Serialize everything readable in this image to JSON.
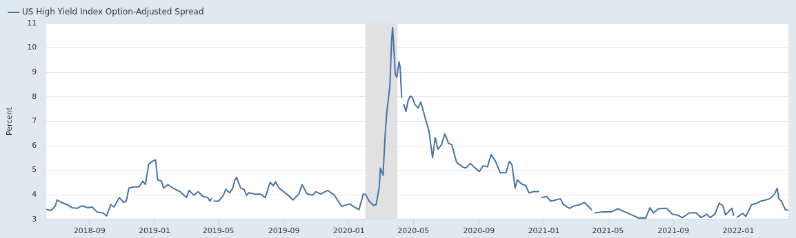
{
  "chart_data": {
    "type": "line",
    "ylabel": "Percent",
    "legend": "top left",
    "grid": "y",
    "marker": "none",
    "xlim": [
      "2018-06-12",
      "2022-04-05"
    ],
    "xticks": [
      "2018-09",
      "2019-01",
      "2019-05",
      "2019-09",
      "2020-01",
      "2020-05",
      "2020-09",
      "2021-01",
      "2021-05",
      "2021-09",
      "2022-01"
    ],
    "ylim": [
      3,
      11
    ],
    "yticks": [
      3,
      4,
      5,
      6,
      7,
      8,
      9,
      10,
      11
    ],
    "bands": [
      {
        "axis": "x",
        "from": "2020-02-01",
        "to": "2020-04-01",
        "color": "#e1e1e1"
      }
    ],
    "x": [
      "2018-06-12",
      "2018-06-21",
      "2018-06-29",
      "2018-07-02",
      "2018-07-10",
      "2018-07-21",
      "2018-07-30",
      "2018-08-09",
      "2018-08-18",
      "2018-08-29",
      "2018-09-06",
      "2018-09-15",
      "2018-09-26",
      "2018-10-03",
      "2018-10-11",
      "2018-10-17",
      "2018-10-27",
      "2018-11-04",
      "2018-11-09",
      "2018-11-14",
      "2018-11-23",
      "2018-12-03",
      "2018-12-10",
      "2018-12-15",
      "2018-12-21",
      "2018-12-27",
      "2019-01-03",
      "2019-01-07",
      "2019-01-14",
      "2019-01-18",
      "2019-01-26",
      "2019-02-05",
      "2019-02-18",
      "2019-03-02",
      "2019-03-07",
      "2019-03-16",
      "2019-03-24",
      "2019-04-02",
      "2019-04-11",
      "2019-04-15",
      "2019-04-18",
      "2019-04-20",
      "2019-04-23",
      "2019-05-01",
      "2019-05-09",
      "2019-05-15",
      "2019-05-22",
      "2019-05-28",
      "2019-06-01",
      "2019-06-04",
      "2019-06-12",
      "2019-06-18",
      "2019-06-23",
      "2019-06-27",
      "2019-07-08",
      "2019-07-19",
      "2019-07-28",
      "2019-08-06",
      "2019-08-12",
      "2019-08-16",
      "2019-08-23",
      "2019-08-31",
      "2019-09-09",
      "2019-09-18",
      "2019-09-29",
      "2019-10-05",
      "2019-10-14",
      "2019-10-25",
      "2019-10-31",
      "2019-11-09",
      "2019-11-22",
      "2019-12-05",
      "2019-12-18",
      "2020-01-02",
      "2020-01-11",
      "2020-01-20",
      "2020-01-28",
      "2020-02-01",
      "2020-02-08",
      "2020-02-16",
      "2020-02-21",
      "2020-02-27",
      "2020-02-29",
      "2020-03-05",
      "2020-03-09",
      "2020-03-12",
      "2020-03-18",
      "2020-03-21",
      "2020-03-23",
      "2020-03-26",
      "2020-03-28",
      "2020-03-31",
      "2020-04-04",
      "2020-04-06",
      "2020-04-09",
      "2020-04-11",
      "2020-04-13",
      "2020-04-17",
      "2020-04-21",
      "2020-04-25",
      "2020-04-29",
      "2020-05-04",
      "2020-05-10",
      "2020-05-15",
      "2020-05-24",
      "2020-05-30",
      "2020-06-06",
      "2020-06-11",
      "2020-06-16",
      "2020-06-23",
      "2020-06-29",
      "2020-07-06",
      "2020-07-12",
      "2020-07-21",
      "2020-08-01",
      "2020-08-07",
      "2020-08-16",
      "2020-08-25",
      "2020-09-02",
      "2020-09-09",
      "2020-09-17",
      "2020-09-24",
      "2020-10-02",
      "2020-10-11",
      "2020-10-22",
      "2020-10-28",
      "2020-11-02",
      "2020-11-08",
      "2020-11-12",
      "2020-11-19",
      "2020-11-28",
      "2020-12-04",
      "2020-12-13",
      "2020-12-22",
      "2020-12-25",
      "2020-12-28",
      "2021-01-06",
      "2021-01-14",
      "2021-01-23",
      "2021-02-01",
      "2021-02-07",
      "2021-02-18",
      "2021-02-27",
      "2021-03-10",
      "2021-03-18",
      "2021-03-31",
      "2021-04-04",
      "2021-04-07",
      "2021-04-20",
      "2021-05-07",
      "2021-05-20",
      "2021-06-02",
      "2021-06-15",
      "2021-06-28",
      "2021-07-11",
      "2021-07-19",
      "2021-07-26",
      "2021-08-04",
      "2021-08-19",
      "2021-08-30",
      "2021-09-10",
      "2021-09-18",
      "2021-10-01",
      "2021-10-14",
      "2021-10-23",
      "2021-11-03",
      "2021-11-09",
      "2021-11-18",
      "2021-11-26",
      "2021-12-03",
      "2021-12-08",
      "2021-12-20",
      "2021-12-23",
      "2021-12-27",
      "2021-12-30",
      "2022-01-09",
      "2022-01-15",
      "2022-01-26",
      "2022-02-04",
      "2022-02-12",
      "2022-02-21",
      "2022-03-01",
      "2022-03-10",
      "2022-03-15",
      "2022-03-18",
      "2022-03-23",
      "2022-03-30",
      "2022-04-05"
    ],
    "series": [
      {
        "name": "US High Yield Index Option-Adjusted Spread",
        "color": "#4572a7",
        "values": [
          3.4,
          3.36,
          3.55,
          3.79,
          3.69,
          3.6,
          3.47,
          3.45,
          3.55,
          3.47,
          3.5,
          3.3,
          3.26,
          3.14,
          3.6,
          3.5,
          3.89,
          3.69,
          3.74,
          4.27,
          4.32,
          4.32,
          4.56,
          4.42,
          5.24,
          5.36,
          5.43,
          4.61,
          4.56,
          4.27,
          4.42,
          4.27,
          4.13,
          3.89,
          4.18,
          3.98,
          4.13,
          3.93,
          3.89,
          3.74,
          3.84,
          null,
          3.74,
          3.74,
          3.93,
          4.22,
          4.08,
          4.27,
          4.61,
          4.71,
          4.27,
          4.22,
          3.98,
          4.08,
          4.03,
          4.03,
          3.89,
          4.51,
          4.37,
          4.53,
          4.27,
          4.13,
          3.98,
          3.79,
          4.03,
          4.42,
          4.05,
          3.98,
          4.13,
          4.03,
          4.18,
          3.98,
          3.53,
          3.63,
          3.5,
          3.4,
          4.03,
          4.03,
          3.74,
          3.57,
          3.6,
          4.32,
          5.09,
          4.8,
          6.44,
          7.35,
          8.46,
          10.29,
          10.84,
          9.71,
          8.94,
          8.8,
          9.43,
          9.23,
          7.98,
          null,
          7.69,
          7.4,
          7.84,
          8.03,
          7.98,
          7.69,
          7.55,
          7.79,
          7.07,
          6.63,
          5.52,
          6.34,
          5.86,
          6.05,
          6.49,
          6.1,
          6.05,
          5.33,
          5.14,
          5.09,
          5.28,
          5.09,
          4.95,
          5.19,
          5.14,
          5.64,
          5.38,
          4.9,
          4.9,
          5.36,
          5.24,
          4.27,
          4.61,
          4.46,
          4.37,
          4.08,
          4.13,
          4.13,
          null,
          3.89,
          3.93,
          3.74,
          3.79,
          3.84,
          3.6,
          3.45,
          3.55,
          3.6,
          3.69,
          3.4,
          null,
          3.26,
          3.3,
          3.3,
          3.43,
          3.3,
          3.18,
          3.05,
          3.05,
          3.47,
          3.26,
          3.43,
          3.45,
          3.21,
          3.16,
          3.07,
          3.26,
          3.26,
          3.07,
          3.21,
          3.07,
          3.21,
          3.66,
          3.55,
          3.18,
          3.45,
          3.16,
          null,
          3.09,
          3.24,
          3.12,
          3.6,
          3.65,
          3.74,
          3.79,
          3.84,
          4.03,
          4.27,
          3.84,
          3.74,
          3.4,
          3.36
        ]
      }
    ]
  }
}
